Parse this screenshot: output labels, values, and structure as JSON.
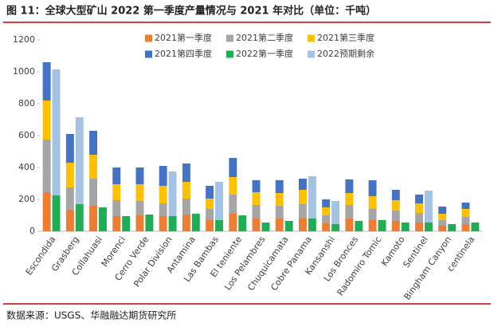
{
  "chart_data": {
    "type": "stacked-pair-bar",
    "title": "图 11：全球大型矿山 2022 第一季度产量情况与 2021 年对比（单位：千吨）",
    "source": "数据来源：USGS、华融融达期货研究所",
    "categories": [
      "Escondida",
      "Grasberg",
      "Collahuasi",
      "Morenci",
      "Cerro Verde",
      "Polar Division",
      "Antamina",
      "Las Bambas",
      "El teniente",
      "Los Pelambres",
      "Chuquicamata",
      "Cobre Panama",
      "Kansanshi",
      "Los Bronces",
      "Radomiro Tomic",
      "Kamoto",
      "Sentinel",
      "Bingham Canyon",
      "centinela"
    ],
    "series": [
      {
        "name": "2021第一季度",
        "color": "#ed7d31",
        "stack": 0,
        "values": [
          245,
          135,
          160,
          95,
          100,
          95,
          105,
          70,
          110,
          80,
          80,
          80,
          50,
          80,
          70,
          65,
          55,
          35,
          45
        ]
      },
      {
        "name": "2021第二季度",
        "color": "#a5a5a5",
        "stack": 0,
        "values": [
          330,
          140,
          170,
          100,
          90,
          80,
          100,
          70,
          120,
          85,
          80,
          90,
          50,
          85,
          70,
          65,
          60,
          35,
          45
        ]
      },
      {
        "name": "2021第三季度",
        "color": "#ffc000",
        "stack": 0,
        "values": [
          245,
          155,
          150,
          100,
          105,
          110,
          105,
          65,
          110,
          80,
          80,
          90,
          50,
          75,
          80,
          65,
          60,
          40,
          50
        ]
      },
      {
        "name": "2021第四季度",
        "color": "#4472c4",
        "stack": 0,
        "values": [
          240,
          180,
          150,
          105,
          105,
          125,
          115,
          80,
          120,
          75,
          80,
          70,
          50,
          85,
          100,
          65,
          55,
          45,
          40
        ]
      },
      {
        "name": "2022第一季度",
        "color": "#1fae55",
        "stack": 1,
        "values": [
          225,
          170,
          150,
          95,
          105,
          95,
          110,
          70,
          100,
          55,
          65,
          80,
          45,
          65,
          70,
          55,
          55,
          45,
          55
        ]
      },
      {
        "name": "2022预期剩余",
        "color": "#a4c2e4",
        "stack": 1,
        "values": [
          790,
          545,
          0,
          0,
          0,
          280,
          0,
          240,
          0,
          0,
          0,
          265,
          145,
          0,
          0,
          0,
          200,
          0,
          0
        ]
      }
    ],
    "ylim": [
      0,
      1200
    ],
    "yticks": [
      0,
      200,
      400,
      600,
      800,
      1000,
      1200
    ]
  }
}
